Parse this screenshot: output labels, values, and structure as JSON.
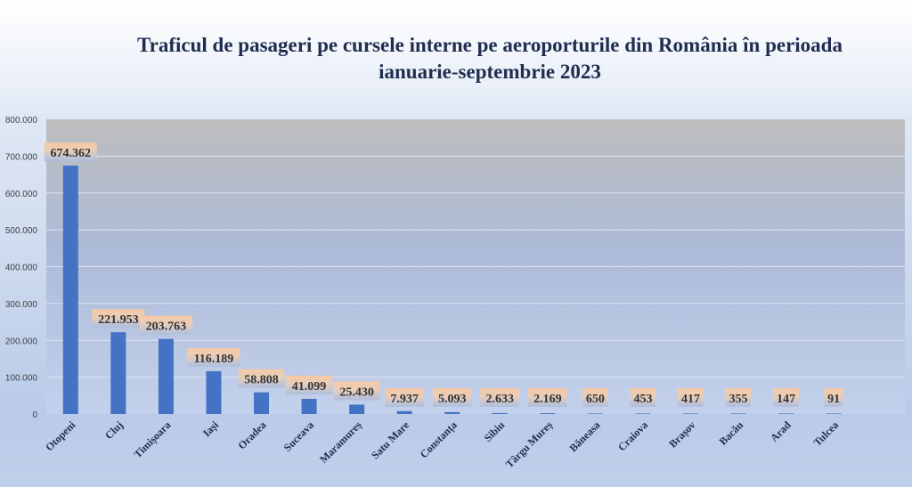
{
  "chart_data": {
    "type": "bar",
    "title": "Traficul de pasageri pe cursele interne pe aeroporturile din România în perioada ianuarie-septembrie 2023",
    "xlabel": "",
    "ylabel": "",
    "ylim": [
      0,
      800000
    ],
    "yticks": [
      0,
      100000,
      200000,
      300000,
      400000,
      500000,
      600000,
      700000,
      800000
    ],
    "ytick_labels": [
      "0",
      "100.000",
      "200.000",
      "300.000",
      "400.000",
      "500.000",
      "600.000",
      "700.000",
      "800.000"
    ],
    "grid": true,
    "legend": "none",
    "categories": [
      "Otopeni",
      "Cluj",
      "Timișoara",
      "Iași",
      "Oradea",
      "Suceava",
      "Maramureș",
      "Satu Mare",
      "Constanța",
      "Sibiu",
      "Târgu Mureș",
      "Băneasa",
      "Craiova",
      "Brașov",
      "Bacău",
      "Arad",
      "Tulcea"
    ],
    "values": [
      674362,
      221953,
      203763,
      116189,
      58808,
      41099,
      25430,
      7937,
      5093,
      2633,
      2169,
      650,
      453,
      417,
      355,
      147,
      91
    ],
    "data_labels": [
      "674.362",
      "221.953",
      "203.763",
      "116.189",
      "58.808",
      "41.099",
      "25.430",
      "7.937",
      "5.093",
      "2.633",
      "2.169",
      "650",
      "453",
      "417",
      "355",
      "147",
      "91"
    ],
    "colors": {
      "bar": "#4472c4",
      "label_bg_top": "#f6c9a6",
      "label_bg_bottom": "#b4c6e7",
      "title": "#1f2d4f"
    }
  }
}
